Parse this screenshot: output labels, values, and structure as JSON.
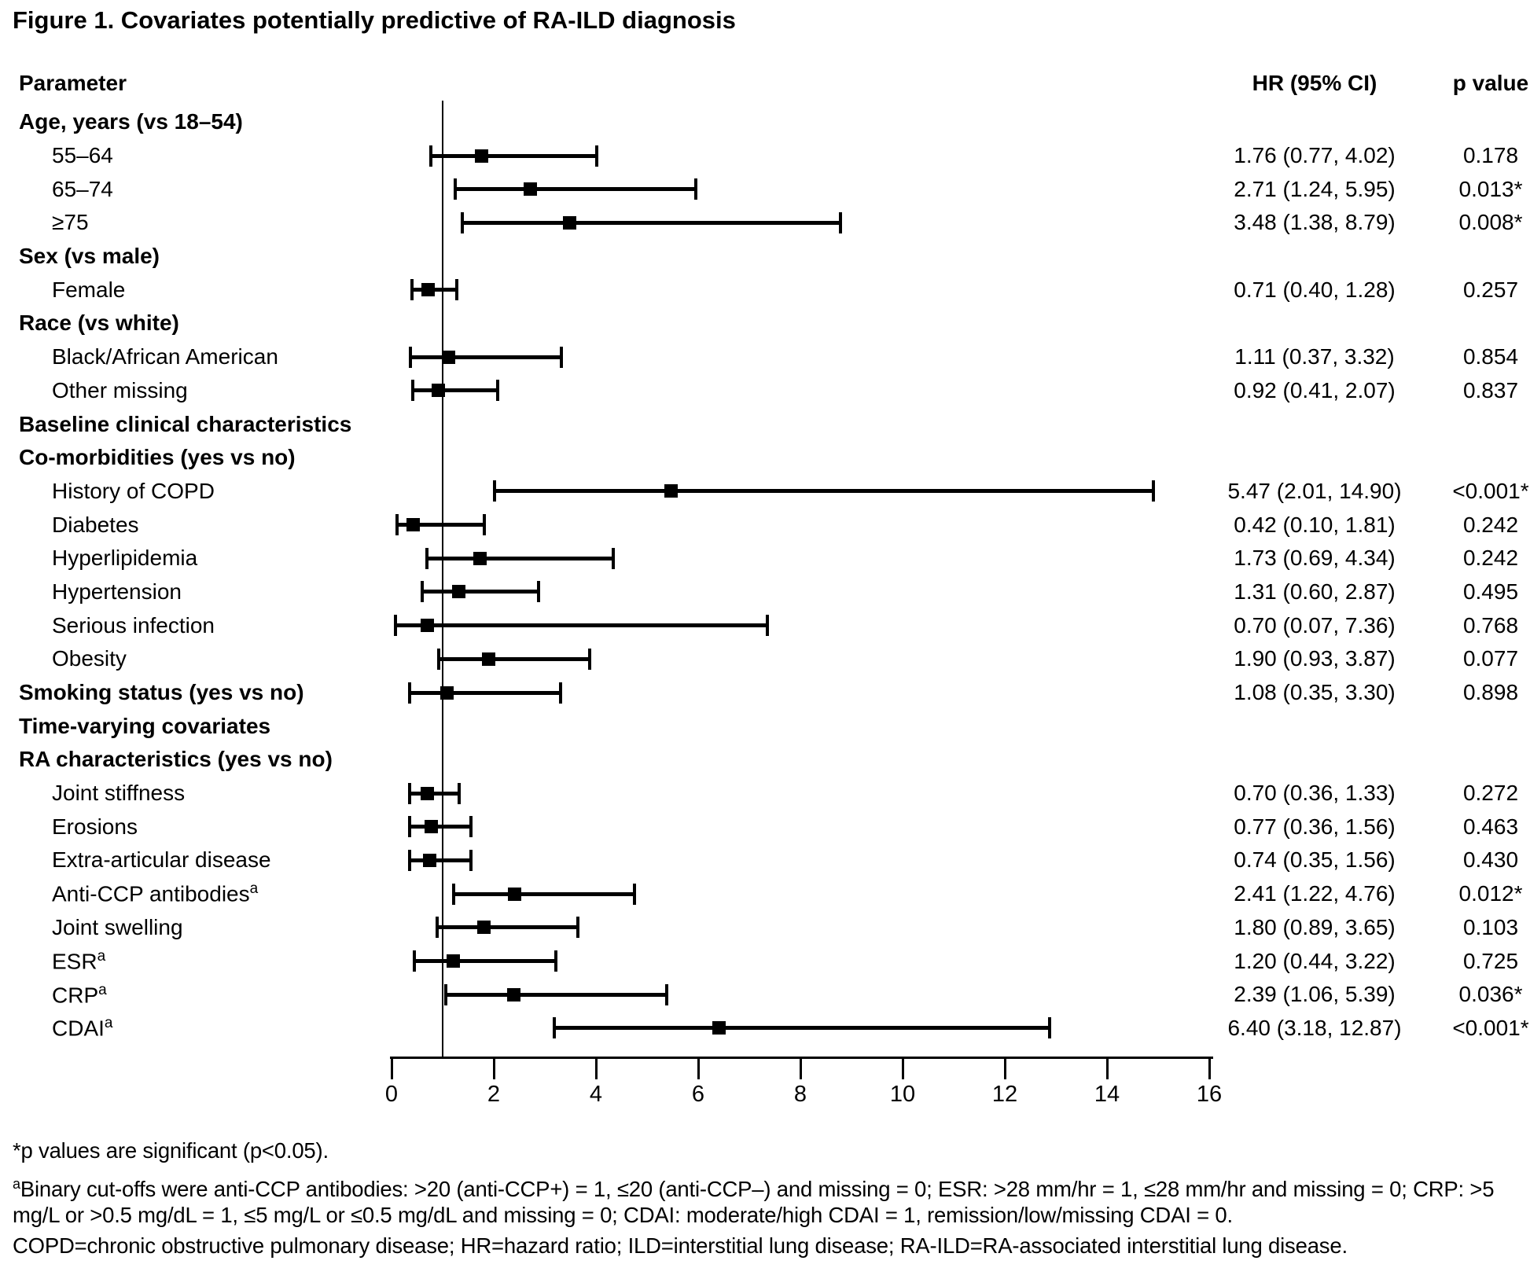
{
  "figure": {
    "title": "Figure 1. Covariates potentially predictive of RA-ILD diagnosis"
  },
  "table_headers": {
    "parameter": "Parameter",
    "hr_ci": "HR (95% CI)",
    "p_value": "p value"
  },
  "colors": {
    "foreground": "#000000",
    "background": "#ffffff"
  },
  "chart_data": {
    "type": "scatter",
    "subtype": "forest-plot",
    "title": "Figure 1. Covariates potentially predictive of RA-ILD diagnosis",
    "xlabel": "",
    "ylabel": "",
    "xlim": [
      0,
      16
    ],
    "x_ticks": [
      0,
      2,
      4,
      6,
      8,
      10,
      12,
      14,
      16
    ],
    "reference_line_x": 1,
    "grid": false,
    "legend": false,
    "rows": [
      {
        "label": "Age, years (vs 18–54)",
        "bold": true,
        "indent": false
      },
      {
        "label": "55–64",
        "bold": false,
        "indent": true,
        "hr": 1.76,
        "ci_low": 0.77,
        "ci_high": 4.02,
        "hr_ci_text": "1.76 (0.77, 4.02)",
        "p_text": "0.178"
      },
      {
        "label": "65–74",
        "bold": false,
        "indent": true,
        "hr": 2.71,
        "ci_low": 1.24,
        "ci_high": 5.95,
        "hr_ci_text": "2.71 (1.24, 5.95)",
        "p_text": "0.013*"
      },
      {
        "label": "≥75",
        "bold": false,
        "indent": true,
        "hr": 3.48,
        "ci_low": 1.38,
        "ci_high": 8.79,
        "hr_ci_text": "3.48 (1.38, 8.79)",
        "p_text": "0.008*"
      },
      {
        "label": "Sex (vs male)",
        "bold": true,
        "indent": false
      },
      {
        "label": "Female",
        "bold": false,
        "indent": true,
        "hr": 0.71,
        "ci_low": 0.4,
        "ci_high": 1.28,
        "hr_ci_text": "0.71 (0.40, 1.28)",
        "p_text": "0.257"
      },
      {
        "label": "Race (vs white)",
        "bold": true,
        "indent": false
      },
      {
        "label": "Black/African American",
        "bold": false,
        "indent": true,
        "hr": 1.11,
        "ci_low": 0.37,
        "ci_high": 3.32,
        "hr_ci_text": "1.11 (0.37, 3.32)",
        "p_text": "0.854"
      },
      {
        "label": "Other missing",
        "bold": false,
        "indent": true,
        "hr": 0.92,
        "ci_low": 0.41,
        "ci_high": 2.07,
        "hr_ci_text": "0.92 (0.41, 2.07)",
        "p_text": "0.837"
      },
      {
        "label": "Baseline clinical characteristics",
        "bold": true,
        "indent": false
      },
      {
        "label": "Co-morbidities (yes vs no)",
        "bold": true,
        "indent": false
      },
      {
        "label": "History of COPD",
        "bold": false,
        "indent": true,
        "hr": 5.47,
        "ci_low": 2.01,
        "ci_high": 14.9,
        "hr_ci_text": "5.47 (2.01, 14.90)",
        "p_text": "<0.001*"
      },
      {
        "label": "Diabetes",
        "bold": false,
        "indent": true,
        "hr": 0.42,
        "ci_low": 0.1,
        "ci_high": 1.81,
        "hr_ci_text": "0.42 (0.10, 1.81)",
        "p_text": "0.242"
      },
      {
        "label": "Hyperlipidemia",
        "bold": false,
        "indent": true,
        "hr": 1.73,
        "ci_low": 0.69,
        "ci_high": 4.34,
        "hr_ci_text": "1.73 (0.69, 4.34)",
        "p_text": "0.242"
      },
      {
        "label": "Hypertension",
        "bold": false,
        "indent": true,
        "hr": 1.31,
        "ci_low": 0.6,
        "ci_high": 2.87,
        "hr_ci_text": "1.31 (0.60, 2.87)",
        "p_text": "0.495"
      },
      {
        "label": "Serious infection",
        "bold": false,
        "indent": true,
        "hr": 0.7,
        "ci_low": 0.07,
        "ci_high": 7.36,
        "hr_ci_text": "0.70 (0.07, 7.36)",
        "p_text": "0.768"
      },
      {
        "label": "Obesity",
        "bold": false,
        "indent": true,
        "hr": 1.9,
        "ci_low": 0.93,
        "ci_high": 3.87,
        "hr_ci_text": "1.90 (0.93, 3.87)",
        "p_text": "0.077"
      },
      {
        "label": "Smoking status (yes vs no)",
        "bold": true,
        "indent": false,
        "hr": 1.08,
        "ci_low": 0.35,
        "ci_high": 3.3,
        "hr_ci_text": "1.08 (0.35, 3.30)",
        "p_text": "0.898"
      },
      {
        "label": "Time-varying covariates",
        "bold": true,
        "indent": false
      },
      {
        "label": "RA characteristics (yes vs no)",
        "bold": true,
        "indent": false
      },
      {
        "label": "Joint stiffness",
        "bold": false,
        "indent": true,
        "hr": 0.7,
        "ci_low": 0.36,
        "ci_high": 1.33,
        "hr_ci_text": "0.70 (0.36, 1.33)",
        "p_text": "0.272"
      },
      {
        "label": "Erosions",
        "bold": false,
        "indent": true,
        "hr": 0.77,
        "ci_low": 0.36,
        "ci_high": 1.56,
        "hr_ci_text": "0.77 (0.36, 1.56)",
        "p_text": "0.463"
      },
      {
        "label": "Extra-articular disease",
        "bold": false,
        "indent": true,
        "hr": 0.74,
        "ci_low": 0.35,
        "ci_high": 1.56,
        "hr_ci_text": "0.74 (0.35, 1.56)",
        "p_text": "0.430"
      },
      {
        "label": "Anti-CCP antibodies",
        "label_sup": "a",
        "bold": false,
        "indent": true,
        "hr": 2.41,
        "ci_low": 1.22,
        "ci_high": 4.76,
        "hr_ci_text": "2.41 (1.22, 4.76)",
        "p_text": "0.012*"
      },
      {
        "label": "Joint swelling",
        "bold": false,
        "indent": true,
        "hr": 1.8,
        "ci_low": 0.89,
        "ci_high": 3.65,
        "hr_ci_text": "1.80 (0.89, 3.65)",
        "p_text": "0.103"
      },
      {
        "label": "ESR",
        "label_sup": "a",
        "bold": false,
        "indent": true,
        "hr": 1.2,
        "ci_low": 0.44,
        "ci_high": 3.22,
        "hr_ci_text": "1.20 (0.44, 3.22)",
        "p_text": "0.725"
      },
      {
        "label": "CRP",
        "label_sup": "a",
        "bold": false,
        "indent": true,
        "hr": 2.39,
        "ci_low": 1.06,
        "ci_high": 5.39,
        "hr_ci_text": "2.39 (1.06, 5.39)",
        "p_text": "0.036*"
      },
      {
        "label": "CDAI",
        "label_sup": "a",
        "bold": false,
        "indent": true,
        "hr": 6.4,
        "ci_low": 3.18,
        "ci_high": 12.87,
        "hr_ci_text": "6.40 (3.18, 12.87)",
        "p_text": "<0.001*"
      }
    ]
  },
  "footnotes": {
    "significance": "*p values are significant (p<0.05).",
    "cutoffs_sup": "a",
    "cutoffs": "Binary cut-offs were anti-CCP antibodies: >20 (anti-CCP+) = 1, ≤20 (anti-CCP–) and missing = 0; ESR: >28 mm/hr = 1, ≤28 mm/hr and missing = 0; CRP: >5 mg/L or >0.5 mg/dL = 1, ≤5 mg/L or ≤0.5 mg/dL and missing = 0; CDAI: moderate/high CDAI = 1, remission/low/missing CDAI = 0.",
    "abbreviations": "COPD=chronic obstructive pulmonary disease; HR=hazard ratio; ILD=interstitial lung disease; RA-ILD=RA-associated interstitial lung disease."
  }
}
